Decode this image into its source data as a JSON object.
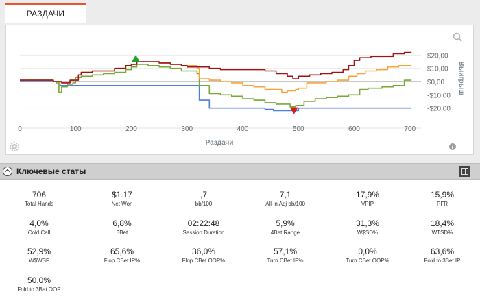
{
  "tab": {
    "label": "РАЗДАЧИ"
  },
  "chart_data": {
    "type": "line",
    "xlabel": "Раздачи",
    "ylabel": "Выигрыш",
    "xlim": [
      0,
      720
    ],
    "ylim": [
      -30,
      30
    ],
    "x_ticks": [
      "0",
      "100",
      "200",
      "300",
      "400",
      "500",
      "600",
      "700"
    ],
    "y_ticks": [
      "$20,00",
      "$10,00",
      "$0,00",
      "-$10,00",
      "-$20,00"
    ],
    "y_tick_values": [
      20,
      10,
      0,
      -10,
      -20
    ],
    "grid": "horizontal",
    "colors": {
      "red": "#a01418",
      "orange": "#f7a33a",
      "green": "#78a837",
      "blue": "#4d7fdf",
      "zero": "#a8a8a8"
    },
    "series": [
      {
        "color": "red",
        "points": [
          [
            0,
            1
          ],
          [
            30,
            1
          ],
          [
            60,
            0
          ],
          [
            75,
            -1
          ],
          [
            90,
            1
          ],
          [
            100,
            1
          ],
          [
            105,
            5
          ],
          [
            110,
            7
          ],
          [
            115,
            7
          ],
          [
            130,
            8
          ],
          [
            150,
            8
          ],
          [
            170,
            10
          ],
          [
            190,
            12
          ],
          [
            200,
            13
          ],
          [
            210,
            15
          ],
          [
            230,
            15
          ],
          [
            250,
            14
          ],
          [
            270,
            13
          ],
          [
            290,
            12
          ],
          [
            300,
            11
          ],
          [
            320,
            11
          ],
          [
            340,
            10
          ],
          [
            360,
            9
          ],
          [
            380,
            9
          ],
          [
            400,
            9
          ],
          [
            420,
            9
          ],
          [
            440,
            8
          ],
          [
            460,
            6
          ],
          [
            480,
            4
          ],
          [
            490,
            2
          ],
          [
            500,
            4
          ],
          [
            520,
            5
          ],
          [
            540,
            6
          ],
          [
            560,
            7
          ],
          [
            580,
            9
          ],
          [
            590,
            12
          ],
          [
            600,
            16
          ],
          [
            610,
            18
          ],
          [
            630,
            19
          ],
          [
            650,
            19
          ],
          [
            670,
            21
          ],
          [
            690,
            22
          ],
          [
            703,
            22
          ]
        ]
      },
      {
        "color": "orange",
        "points": [
          [
            0,
            1
          ],
          [
            30,
            1
          ],
          [
            60,
            0
          ],
          [
            75,
            -1
          ],
          [
            90,
            1
          ],
          [
            100,
            1
          ],
          [
            105,
            5
          ],
          [
            110,
            7
          ],
          [
            115,
            7
          ],
          [
            130,
            8
          ],
          [
            150,
            8
          ],
          [
            170,
            10
          ],
          [
            190,
            12
          ],
          [
            200,
            13
          ],
          [
            210,
            15
          ],
          [
            230,
            15
          ],
          [
            250,
            14
          ],
          [
            270,
            13
          ],
          [
            290,
            12
          ],
          [
            318,
            10
          ],
          [
            322,
            2
          ],
          [
            340,
            1
          ],
          [
            360,
            0
          ],
          [
            380,
            -1
          ],
          [
            400,
            -3
          ],
          [
            420,
            -4
          ],
          [
            440,
            -6
          ],
          [
            455,
            -6
          ],
          [
            470,
            -8
          ],
          [
            480,
            -7
          ],
          [
            495,
            -6
          ],
          [
            500,
            -5
          ],
          [
            515,
            -1
          ],
          [
            530,
            -1
          ],
          [
            550,
            0
          ],
          [
            570,
            1
          ],
          [
            590,
            4
          ],
          [
            605,
            6
          ],
          [
            620,
            8
          ],
          [
            640,
            9
          ],
          [
            660,
            11
          ],
          [
            680,
            12
          ],
          [
            703,
            12
          ]
        ]
      },
      {
        "color": "green",
        "points": [
          [
            0,
            1
          ],
          [
            30,
            1
          ],
          [
            60,
            0
          ],
          [
            65,
            -1
          ],
          [
            70,
            -8
          ],
          [
            75,
            -4
          ],
          [
            85,
            -2
          ],
          [
            95,
            -1
          ],
          [
            100,
            3
          ],
          [
            110,
            4
          ],
          [
            130,
            5
          ],
          [
            150,
            6
          ],
          [
            170,
            7
          ],
          [
            190,
            9
          ],
          [
            200,
            11
          ],
          [
            210,
            13
          ],
          [
            230,
            12
          ],
          [
            250,
            11
          ],
          [
            270,
            10
          ],
          [
            290,
            8
          ],
          [
            318,
            6
          ],
          [
            322,
            -3
          ],
          [
            340,
            -9
          ],
          [
            360,
            -10
          ],
          [
            380,
            -11
          ],
          [
            400,
            -13
          ],
          [
            420,
            -14
          ],
          [
            440,
            -16
          ],
          [
            460,
            -17
          ],
          [
            485,
            -19
          ],
          [
            495,
            -18
          ],
          [
            510,
            -15
          ],
          [
            530,
            -13
          ],
          [
            550,
            -12
          ],
          [
            570,
            -11
          ],
          [
            590,
            -10
          ],
          [
            610,
            -6
          ],
          [
            625,
            -5
          ],
          [
            650,
            -4
          ],
          [
            670,
            -3
          ],
          [
            690,
            1
          ],
          [
            703,
            1
          ]
        ]
      },
      {
        "color": "blue",
        "points": [
          [
            0,
            0
          ],
          [
            70,
            0
          ],
          [
            72,
            -3
          ],
          [
            82,
            -3
          ],
          [
            95,
            -3
          ],
          [
            100,
            -3
          ],
          [
            150,
            -3
          ],
          [
            200,
            -3
          ],
          [
            250,
            -3
          ],
          [
            300,
            -3
          ],
          [
            318,
            -3
          ],
          [
            322,
            -14
          ],
          [
            335,
            -14
          ],
          [
            340,
            -20
          ],
          [
            360,
            -20
          ],
          [
            400,
            -20
          ],
          [
            440,
            -21
          ],
          [
            455,
            -22
          ],
          [
            470,
            -22
          ],
          [
            495,
            -22
          ],
          [
            500,
            -20
          ],
          [
            540,
            -20
          ],
          [
            580,
            -20
          ],
          [
            600,
            -20
          ],
          [
            640,
            -20
          ],
          [
            660,
            -20
          ],
          [
            703,
            -20
          ]
        ]
      }
    ],
    "markers": [
      {
        "kind": "max",
        "color": "#1fa12b",
        "x": 208,
        "y": 16
      },
      {
        "kind": "min",
        "color": "#d41d1d",
        "x": 492,
        "y": -20
      }
    ]
  },
  "stats_section": {
    "title": "Ключевые статы",
    "rows": [
      [
        {
          "value": "706",
          "label": "Total Hands"
        },
        {
          "value": "$1.17",
          "label": "Net Won"
        },
        {
          "value": ",7",
          "label": "bb/100"
        },
        {
          "value": "7,1",
          "label": "All-in Adj bb/100"
        },
        {
          "value": "17,9%",
          "label": "VPIP"
        },
        {
          "value": "15,9%",
          "label": "PFR"
        }
      ],
      [
        {
          "value": "4,0%",
          "label": "Cold Call"
        },
        {
          "value": "6,8%",
          "label": "3Bet"
        },
        {
          "value": "02:22:48",
          "label": "Session Duration"
        },
        {
          "value": "5,9%",
          "label": "4Bet Range"
        },
        {
          "value": "31,3%",
          "label": "W$SD%"
        },
        {
          "value": "18,4%",
          "label": "WTSD%"
        }
      ],
      [
        {
          "value": "52,9%",
          "label": "W$WSF"
        },
        {
          "value": "65,6%",
          "label": "Flop CBet IP%"
        },
        {
          "value": "36,0%",
          "label": "Flop CBet OOP%"
        },
        {
          "value": "57,1%",
          "label": "Turn CBet IP%"
        },
        {
          "value": "0,0%",
          "label": "Turn CBet OOP%"
        },
        {
          "value": "63,6%",
          "label": "Fold to 3Bet IP"
        }
      ],
      [
        {
          "value": "50,0%",
          "label": "Fold to 3Bet OOP"
        }
      ]
    ]
  },
  "icons": {
    "zoom": "magnifier-icon",
    "settings": "gear-icon",
    "info": "info-icon",
    "collapse": "chevron-up-icon",
    "layout": "columns-icon"
  }
}
